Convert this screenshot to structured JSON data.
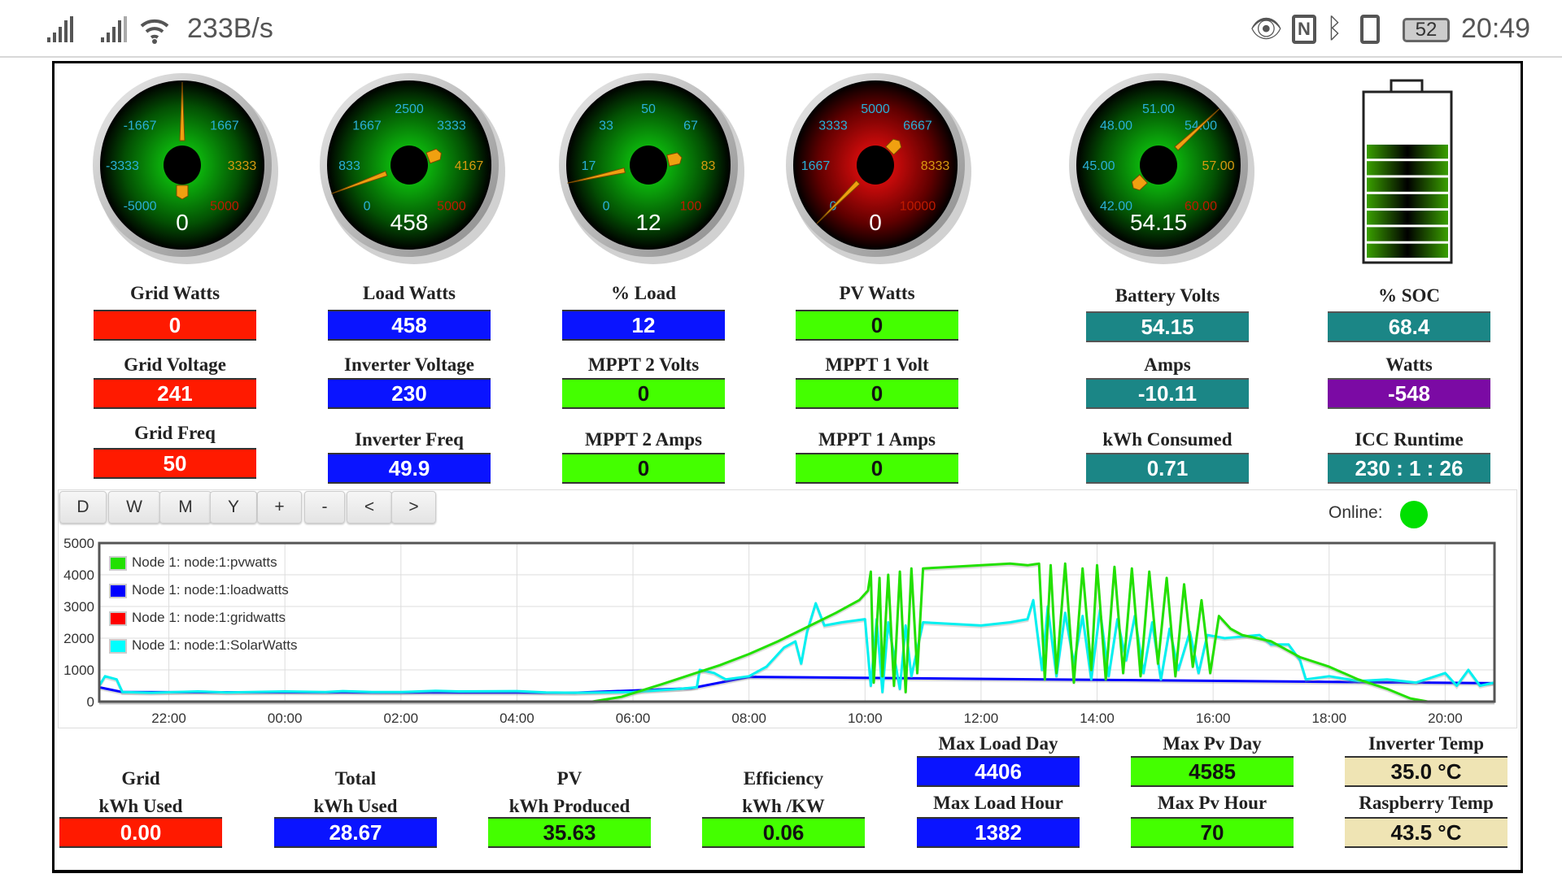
{
  "status_bar": {
    "net_speed": "233B/s",
    "battery": "52",
    "time": "20:49"
  },
  "gauges": [
    {
      "name": "grid-watts",
      "theme": "green",
      "min": -5000,
      "max": 5000,
      "value": 0,
      "display": "0",
      "labels": [
        "-5000",
        "-3333",
        "-1667",
        null,
        "1667",
        "3333",
        "5000"
      ]
    },
    {
      "name": "load-watts",
      "theme": "green",
      "min": 0,
      "max": 5000,
      "value": 458,
      "display": "458",
      "labels": [
        "0",
        "833",
        "1667",
        "2500",
        "3333",
        "4167",
        "5000"
      ]
    },
    {
      "name": "percent-load",
      "theme": "green",
      "min": 0,
      "max": 100,
      "value": 12,
      "display": "12",
      "labels": [
        "0",
        "17",
        "33",
        "50",
        "67",
        "83",
        "100"
      ]
    },
    {
      "name": "pv-watts",
      "theme": "red",
      "min": 0,
      "max": 10000,
      "value": 0,
      "display": "0",
      "labels": [
        "0",
        "1667",
        "3333",
        "5000",
        "6667",
        "8333",
        "10000"
      ]
    },
    {
      "name": "battery-volts",
      "theme": "green",
      "min": 42,
      "max": 60,
      "value": 54.15,
      "display": "54.15",
      "labels": [
        "42.00",
        "45.00",
        "48.00",
        "51.00",
        "54.00",
        "57.00",
        "60.00"
      ]
    }
  ],
  "battery_soc_percent": 68.4,
  "tiles": [
    {
      "label": "Grid Watts",
      "value": "0",
      "color": "red"
    },
    {
      "label": "Load Watts",
      "value": "458",
      "color": "blue"
    },
    {
      "label": "% Load",
      "value": "12",
      "color": "blue"
    },
    {
      "label": "PV Watts",
      "value": "0",
      "color": "green"
    },
    {
      "label": "Battery Volts",
      "value": "54.15",
      "color": "teal"
    },
    {
      "label": "% SOC",
      "value": "68.4",
      "color": "teal"
    },
    {
      "label": "Grid Voltage",
      "value": "241",
      "color": "red"
    },
    {
      "label": "Inverter Voltage",
      "value": "230",
      "color": "blue"
    },
    {
      "label": "MPPT 2 Volts",
      "value": "0",
      "color": "green"
    },
    {
      "label": "MPPT 1 Volt",
      "value": "0",
      "color": "green"
    },
    {
      "label": "Amps",
      "value": "-10.11",
      "color": "teal"
    },
    {
      "label": "Watts",
      "value": "-548",
      "color": "purple"
    },
    {
      "label": "Grid Freq",
      "value": "50",
      "color": "red"
    },
    {
      "label": "Inverter Freq",
      "value": "49.9",
      "color": "blue"
    },
    {
      "label": "MPPT 2 Amps",
      "value": "0",
      "color": "green"
    },
    {
      "label": "MPPT 1 Amps",
      "value": "0",
      "color": "green"
    },
    {
      "label": "kWh Consumed",
      "value": "0.71",
      "color": "teal"
    },
    {
      "label": "ICC Runtime",
      "value": "230 :   1 :  26",
      "color": "teal"
    }
  ],
  "chart_controls": {
    "buttons": [
      "D",
      "W",
      "M",
      "Y",
      "+",
      "-",
      "<",
      ">"
    ],
    "online_label": "Online:",
    "online_color": "#00e000"
  },
  "chart_data": {
    "type": "line",
    "ylim": [
      0,
      5000
    ],
    "yticks": [
      "0",
      "1000",
      "2000",
      "3000",
      "4000",
      "5000"
    ],
    "xlim": [
      -3.2,
      20.85
    ],
    "xticks": [
      {
        "h": -2,
        "label": "22:00"
      },
      {
        "h": 0,
        "label": "00:00"
      },
      {
        "h": 2,
        "label": "02:00"
      },
      {
        "h": 4,
        "label": "04:00"
      },
      {
        "h": 6,
        "label": "06:00"
      },
      {
        "h": 8,
        "label": "08:00"
      },
      {
        "h": 10,
        "label": "10:00"
      },
      {
        "h": 12,
        "label": "12:00"
      },
      {
        "h": 14,
        "label": "14:00"
      },
      {
        "h": 16,
        "label": "16:00"
      },
      {
        "h": 18,
        "label": "18:00"
      },
      {
        "h": 20,
        "label": "20:00"
      }
    ],
    "legend_position": "top-left",
    "series": [
      {
        "name": "Node 1: node:1:loadwatts",
        "color": "#0000ff",
        "points": [
          [
            -3.2,
            450
          ],
          [
            -2.8,
            300
          ],
          [
            5,
            280
          ],
          [
            7,
            420
          ],
          [
            8,
            780
          ],
          [
            20.85,
            580
          ]
        ]
      },
      {
        "name": "Node 1: node:1:gridwatts",
        "color": "#ff0000",
        "points": [
          [
            -3.2,
            0
          ],
          [
            20.85,
            0
          ]
        ]
      },
      {
        "name": "Node 1: node:1:SolarWatts",
        "color": "#00f0f0",
        "points": [
          [
            -3.2,
            500
          ],
          [
            -3.1,
            800
          ],
          [
            -2.9,
            700
          ],
          [
            -2.8,
            300
          ],
          [
            -2.3,
            280
          ],
          [
            -1.5,
            320
          ],
          [
            -1,
            290
          ],
          [
            0,
            320
          ],
          [
            0.7,
            300
          ],
          [
            1,
            330
          ],
          [
            1.5,
            300
          ],
          [
            2,
            300
          ],
          [
            2.6,
            340
          ],
          [
            3,
            320
          ],
          [
            4,
            330
          ],
          [
            4.5,
            290
          ],
          [
            5,
            280
          ],
          [
            6,
            300
          ],
          [
            6.8,
            400
          ],
          [
            7.1,
            450
          ],
          [
            7.15,
            1000
          ],
          [
            7.4,
            900
          ],
          [
            7.6,
            700
          ],
          [
            8.0,
            800
          ],
          [
            8.3,
            1100
          ],
          [
            8.6,
            1700
          ],
          [
            8.8,
            1900
          ],
          [
            8.9,
            1200
          ],
          [
            9.0,
            2200
          ],
          [
            9.15,
            3100
          ],
          [
            9.3,
            2400
          ],
          [
            9.6,
            2500
          ],
          [
            10.0,
            2600
          ],
          [
            10.1,
            500
          ],
          [
            10.2,
            2600
          ],
          [
            10.3,
            300
          ],
          [
            10.4,
            2500
          ],
          [
            10.6,
            400
          ],
          [
            10.7,
            2400
          ],
          [
            10.8,
            800
          ],
          [
            11.0,
            2500
          ],
          [
            12.0,
            2400
          ],
          [
            12.5,
            2500
          ],
          [
            12.8,
            2600
          ],
          [
            12.9,
            3200
          ],
          [
            13.05,
            1000
          ],
          [
            13.15,
            3000
          ],
          [
            13.3,
            800
          ],
          [
            13.45,
            2800
          ],
          [
            13.6,
            1200
          ],
          [
            13.75,
            2700
          ],
          [
            13.9,
            700
          ],
          [
            14.05,
            2900
          ],
          [
            14.2,
            800
          ],
          [
            14.35,
            2600
          ],
          [
            14.5,
            1300
          ],
          [
            14.65,
            2700
          ],
          [
            14.8,
            900
          ],
          [
            14.95,
            2500
          ],
          [
            15.1,
            700
          ],
          [
            15.25,
            2300
          ],
          [
            15.4,
            1000
          ],
          [
            15.6,
            2200
          ],
          [
            15.75,
            900
          ],
          [
            15.9,
            2100
          ],
          [
            16.2,
            2000
          ],
          [
            16.8,
            2100
          ],
          [
            17.0,
            1800
          ],
          [
            17.3,
            1800
          ],
          [
            17.5,
            1300
          ],
          [
            17.6,
            700
          ],
          [
            18.0,
            800
          ],
          [
            18.5,
            650
          ],
          [
            19.0,
            700
          ],
          [
            19.5,
            600
          ],
          [
            20.0,
            900
          ],
          [
            20.2,
            500
          ],
          [
            20.4,
            1000
          ],
          [
            20.6,
            500
          ],
          [
            20.85,
            600
          ]
        ]
      },
      {
        "name": "Node 1: node:1:pvwatts",
        "color": "#22e000",
        "points": [
          [
            -3.2,
            0
          ],
          [
            5.3,
            0
          ],
          [
            5.8,
            150
          ],
          [
            6.5,
            550
          ],
          [
            7.0,
            850
          ],
          [
            7.5,
            1150
          ],
          [
            8.0,
            1500
          ],
          [
            8.5,
            1900
          ],
          [
            9.0,
            2350
          ],
          [
            9.5,
            2800
          ],
          [
            9.9,
            3200
          ],
          [
            10.05,
            3500
          ],
          [
            10.1,
            4100
          ],
          [
            10.15,
            600
          ],
          [
            10.25,
            3900
          ],
          [
            10.3,
            800
          ],
          [
            10.4,
            4000
          ],
          [
            10.5,
            500
          ],
          [
            10.6,
            4100
          ],
          [
            10.7,
            300
          ],
          [
            10.8,
            4200
          ],
          [
            10.9,
            900
          ],
          [
            11.0,
            4200
          ],
          [
            11.5,
            4250
          ],
          [
            12.0,
            4300
          ],
          [
            12.5,
            4350
          ],
          [
            12.8,
            4300
          ],
          [
            13.0,
            4350
          ],
          [
            13.1,
            700
          ],
          [
            13.2,
            4300
          ],
          [
            13.3,
            900
          ],
          [
            13.45,
            4350
          ],
          [
            13.6,
            600
          ],
          [
            13.75,
            4200
          ],
          [
            13.9,
            1000
          ],
          [
            14.0,
            4300
          ],
          [
            14.15,
            700
          ],
          [
            14.3,
            4250
          ],
          [
            14.45,
            900
          ],
          [
            14.6,
            4200
          ],
          [
            14.75,
            800
          ],
          [
            14.9,
            4100
          ],
          [
            15.05,
            1200
          ],
          [
            15.2,
            3900
          ],
          [
            15.35,
            800
          ],
          [
            15.5,
            3700
          ],
          [
            15.65,
            1100
          ],
          [
            15.8,
            3200
          ],
          [
            15.95,
            900
          ],
          [
            16.1,
            2700
          ],
          [
            16.3,
            2300
          ],
          [
            16.5,
            2100
          ],
          [
            17.0,
            1900
          ],
          [
            17.5,
            1400
          ],
          [
            18.0,
            1100
          ],
          [
            18.5,
            700
          ],
          [
            19.0,
            400
          ],
          [
            19.4,
            100
          ],
          [
            19.7,
            0
          ],
          [
            20.85,
            0
          ]
        ]
      }
    ],
    "legend": [
      {
        "name": "Node 1: node:1:pvwatts",
        "color": "#22e000"
      },
      {
        "name": "Node 1: node:1:loadwatts",
        "color": "#0000ff"
      },
      {
        "name": "Node 1: node:1:gridwatts",
        "color": "#ff0000"
      },
      {
        "name": "Node 1: node:1:SolarWatts",
        "color": "#00ffff"
      }
    ]
  },
  "bottom": {
    "grid_used": {
      "label1": "Grid",
      "label2": "kWh Used",
      "value": "0.00"
    },
    "total_used": {
      "label1": "Total",
      "label2": "kWh Used",
      "value": "28.67"
    },
    "pv_produced": {
      "label1": "PV",
      "label2": "kWh Produced",
      "value": "35.63"
    },
    "efficiency": {
      "label1": "Efficiency",
      "label2": "kWh /KW",
      "value": "0.06"
    },
    "max_load_day": {
      "label": "Max Load Day",
      "value": "4406"
    },
    "max_load_hour": {
      "label": "Max Load Hour",
      "value": "1382"
    },
    "max_pv_day": {
      "label": "Max Pv Day",
      "value": "4585"
    },
    "max_pv_hour": {
      "label": "Max Pv Hour",
      "value": "70"
    },
    "inverter_temp": {
      "label": "Inverter Temp",
      "value": "35.0 °C"
    },
    "raspberry_temp": {
      "label": "Raspberry Temp",
      "value": "43.5 °C"
    }
  }
}
